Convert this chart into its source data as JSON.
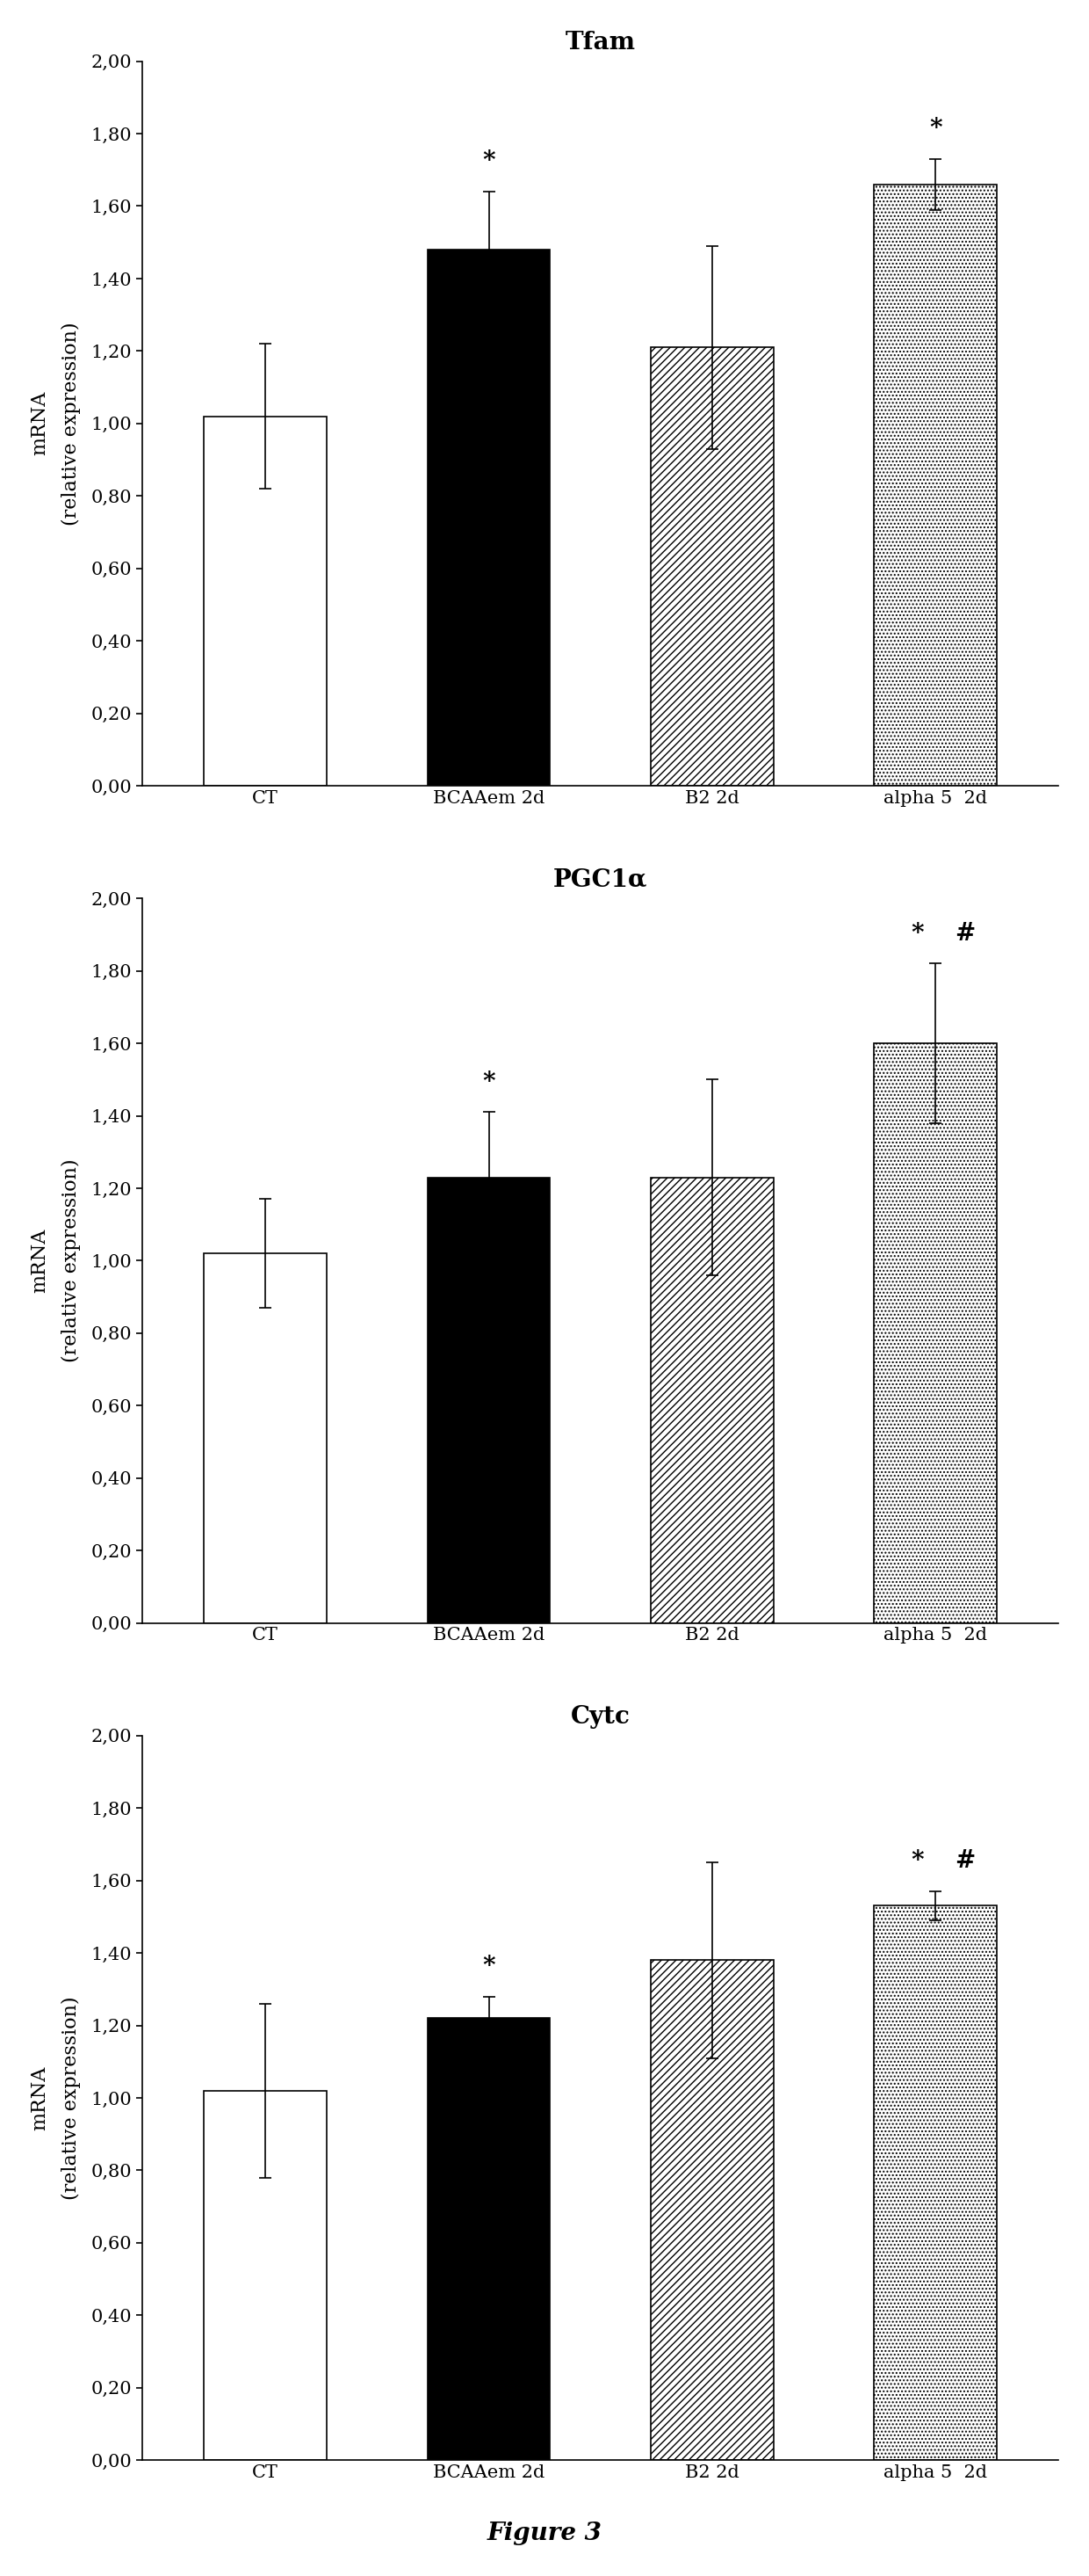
{
  "charts": [
    {
      "title": "Tfam",
      "categories": [
        "CT",
        "BCAAem 2d",
        "B2 2d",
        "alpha 5  2d"
      ],
      "values": [
        1.02,
        1.48,
        1.21,
        1.66
      ],
      "errors": [
        0.2,
        0.16,
        0.28,
        0.07
      ],
      "significance": [
        "",
        "*",
        "",
        "*"
      ],
      "sig_positions": [
        null,
        1,
        null,
        3
      ],
      "ylim": [
        0,
        2.0
      ],
      "yticks": [
        0.0,
        0.2,
        0.4,
        0.6,
        0.8,
        1.0,
        1.2,
        1.4,
        1.6,
        1.8,
        2.0
      ]
    },
    {
      "title": "PGC1α",
      "categories": [
        "CT",
        "BCAAem 2d",
        "B2 2d",
        "alpha 5  2d"
      ],
      "values": [
        1.02,
        1.23,
        1.23,
        1.6
      ],
      "errors": [
        0.15,
        0.18,
        0.27,
        0.22
      ],
      "significance": [
        "",
        "*",
        "",
        "* #"
      ],
      "sig_positions": [
        null,
        1,
        null,
        3
      ],
      "ylim": [
        0,
        2.0
      ],
      "yticks": [
        0.0,
        0.2,
        0.4,
        0.6,
        0.8,
        1.0,
        1.2,
        1.4,
        1.6,
        1.8,
        2.0
      ]
    },
    {
      "title": "Cytc",
      "categories": [
        "CT",
        "BCAAem 2d",
        "B2 2d",
        "alpha 5  2d"
      ],
      "values": [
        1.02,
        1.22,
        1.38,
        1.53
      ],
      "errors": [
        0.24,
        0.06,
        0.27,
        0.04
      ],
      "significance": [
        "",
        "*",
        "",
        "* #"
      ],
      "sig_positions": [
        null,
        1,
        null,
        3
      ],
      "ylim": [
        0,
        2.0
      ],
      "yticks": [
        0.0,
        0.2,
        0.4,
        0.6,
        0.8,
        1.0,
        1.2,
        1.4,
        1.6,
        1.8,
        2.0
      ]
    }
  ],
  "bar_edge_color": "black",
  "ylabel": "mRNA\n(relative expression)",
  "figure_label": "Figure 3",
  "background_color": "white",
  "bar_width": 0.55,
  "sig_fontsize": 20,
  "title_fontsize": 20,
  "tick_fontsize": 15,
  "ylabel_fontsize": 16
}
